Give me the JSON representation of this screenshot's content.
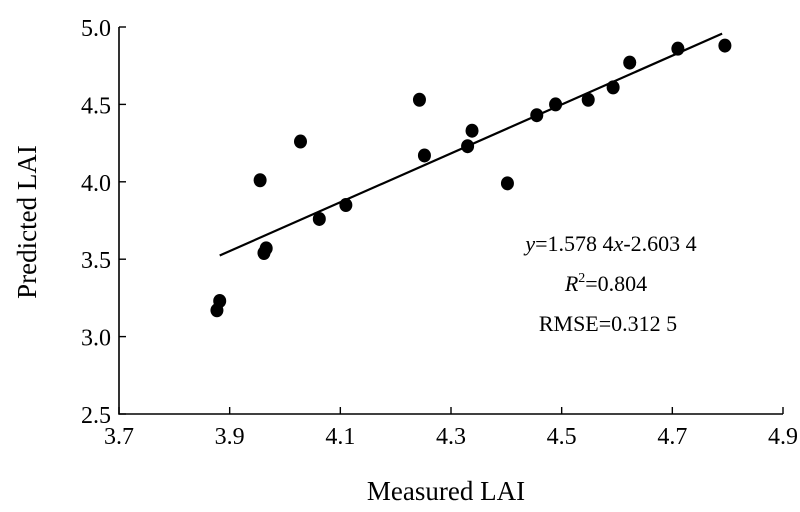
{
  "chart_data": {
    "type": "scatter",
    "title": "",
    "xlabel": "Measured LAI",
    "ylabel": "Predicted LAI",
    "xlim": [
      3.7,
      4.9
    ],
    "ylim": [
      2.5,
      5.0
    ],
    "xticks": [
      "3.7",
      "3.9",
      "4.1",
      "4.3",
      "4.5",
      "4.7",
      "4.9"
    ],
    "yticks": [
      "2.5",
      "3.0",
      "3.5",
      "4.0",
      "4.5",
      "5.0"
    ],
    "grid": false,
    "points": [
      {
        "x": 3.877,
        "y": 3.17
      },
      {
        "x": 3.882,
        "y": 3.23
      },
      {
        "x": 3.955,
        "y": 4.01
      },
      {
        "x": 3.962,
        "y": 3.54
      },
      {
        "x": 3.966,
        "y": 3.57
      },
      {
        "x": 4.028,
        "y": 4.26
      },
      {
        "x": 4.062,
        "y": 3.76
      },
      {
        "x": 4.11,
        "y": 3.85
      },
      {
        "x": 4.243,
        "y": 4.53
      },
      {
        "x": 4.252,
        "y": 4.17
      },
      {
        "x": 4.33,
        "y": 4.23
      },
      {
        "x": 4.338,
        "y": 4.33
      },
      {
        "x": 4.402,
        "y": 3.99
      },
      {
        "x": 4.455,
        "y": 4.43
      },
      {
        "x": 4.489,
        "y": 4.5
      },
      {
        "x": 4.548,
        "y": 4.53
      },
      {
        "x": 4.593,
        "y": 4.61
      },
      {
        "x": 4.623,
        "y": 4.77
      },
      {
        "x": 4.71,
        "y": 4.86
      },
      {
        "x": 4.795,
        "y": 4.88
      }
    ],
    "fit": {
      "slope": 1.5784,
      "intercept": -2.6034,
      "x_range": [
        3.882,
        4.79
      ]
    },
    "annotation": {
      "equation": {
        "y_var": "y",
        "eq1": "=1.578 4",
        "x_var": "x",
        "eq2": "-2.603 4"
      },
      "r2": {
        "r_var": "R",
        "sup": "2",
        "value": "=0.804"
      },
      "rmse": "RMSE=0.312 5"
    }
  }
}
